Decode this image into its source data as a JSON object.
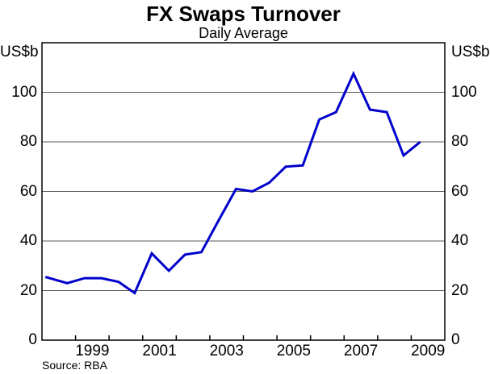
{
  "chart_data": {
    "type": "line",
    "title": "FX Swaps Turnover",
    "subtitle": "Daily Average",
    "ylabel": "US$b",
    "source": "Source: RBA",
    "ylim": [
      0,
      120
    ],
    "xlim": [
      1998,
      2010
    ],
    "grid": true,
    "legend_position": "none",
    "gridline_values": [
      20,
      40,
      60,
      80,
      100
    ],
    "y_tick_labels": [
      0,
      20,
      40,
      60,
      80,
      100
    ],
    "x_tick_years": [
      1999,
      2000,
      2001,
      2002,
      2003,
      2004,
      2005,
      2006,
      2007,
      2008,
      2009
    ],
    "x_label_years": [
      1999,
      2001,
      2003,
      2005,
      2007,
      2009
    ],
    "colors": {
      "line": "#0000CC",
      "grid": "#5A5A5A",
      "frame": "#000000",
      "text": "#000000"
    },
    "series": [
      {
        "name": "FX swaps turnover (daily average, US$b)",
        "color": "#0000CC",
        "points": [
          [
            1998.1,
            25.5
          ],
          [
            1998.75,
            23.0
          ],
          [
            1999.27,
            25.0
          ],
          [
            1999.77,
            25.0
          ],
          [
            2000.28,
            23.5
          ],
          [
            2000.76,
            19.0
          ],
          [
            2001.27,
            35.0
          ],
          [
            2001.78,
            28.0
          ],
          [
            2002.26,
            34.5
          ],
          [
            2002.75,
            35.5
          ],
          [
            2003.25,
            48.0
          ],
          [
            2003.78,
            61.0
          ],
          [
            2004.27,
            60.0
          ],
          [
            2004.77,
            63.5
          ],
          [
            2005.26,
            70.0
          ],
          [
            2005.77,
            70.5
          ],
          [
            2006.26,
            89.0
          ],
          [
            2006.76,
            92.0
          ],
          [
            2007.28,
            107.5
          ],
          [
            2007.77,
            93.0
          ],
          [
            2008.27,
            92.0
          ],
          [
            2008.77,
            74.5
          ],
          [
            2009.27,
            80.0
          ]
        ]
      }
    ]
  }
}
